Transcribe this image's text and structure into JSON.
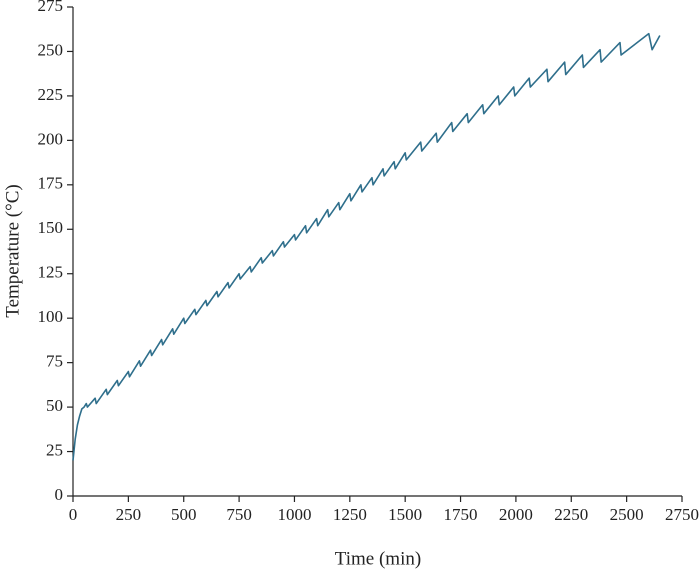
{
  "chart_data": {
    "type": "line",
    "x_label": "Time (min)",
    "y_label": "Temperature (°C)",
    "xlim": [
      0,
      2750
    ],
    "xticks": [
      0,
      250,
      500,
      750,
      1000,
      1250,
      1500,
      1750,
      2000,
      2250,
      2500,
      2750
    ],
    "ylim": [
      0,
      275
    ],
    "yticks": [
      0,
      25,
      50,
      75,
      100,
      125,
      150,
      175,
      200,
      225,
      250,
      275
    ],
    "grid": false,
    "series": [
      {
        "color": "#2f6f8c",
        "x": [
          0,
          10,
          20,
          30,
          40,
          50,
          60,
          65,
          100,
          105,
          150,
          155,
          200,
          205,
          250,
          255,
          300,
          305,
          350,
          355,
          400,
          405,
          450,
          455,
          500,
          505,
          550,
          555,
          600,
          605,
          650,
          655,
          700,
          705,
          750,
          755,
          800,
          805,
          850,
          855,
          900,
          905,
          950,
          955,
          1000,
          1005,
          1050,
          1055,
          1100,
          1105,
          1150,
          1155,
          1200,
          1205,
          1250,
          1255,
          1300,
          1305,
          1350,
          1355,
          1400,
          1405,
          1450,
          1455,
          1500,
          1505,
          1570,
          1575,
          1640,
          1645,
          1710,
          1715,
          1780,
          1785,
          1850,
          1855,
          1920,
          1925,
          1990,
          1995,
          2060,
          2065,
          2140,
          2145,
          2220,
          2225,
          2300,
          2305,
          2380,
          2385,
          2470,
          2475,
          2600,
          2615,
          2650
        ],
        "values": [
          20,
          32,
          40,
          45,
          49,
          50,
          52,
          50,
          55,
          52,
          60,
          57,
          65,
          62,
          70,
          67,
          76,
          73,
          82,
          79,
          88,
          85,
          94,
          91,
          100,
          97,
          105,
          102,
          110,
          107,
          115,
          112,
          120,
          117,
          125,
          122,
          129,
          126,
          134,
          131,
          138,
          135,
          143,
          140,
          147,
          144,
          152,
          148,
          156,
          152,
          161,
          157,
          165,
          161,
          170,
          166,
          175,
          171,
          179,
          175,
          184,
          180,
          188,
          184,
          193,
          189,
          199,
          194,
          204,
          199,
          210,
          205,
          215,
          210,
          220,
          215,
          225,
          220,
          230,
          225,
          235,
          230,
          240,
          233,
          244,
          237,
          248,
          241,
          251,
          244,
          255,
          248,
          260,
          251,
          259
        ]
      }
    ]
  }
}
